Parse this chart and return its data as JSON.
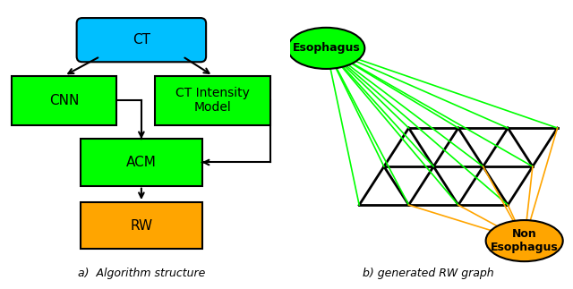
{
  "title_left": "a)  Algorithm structure",
  "title_right": "b) generated RW graph",
  "ct_label": "CT",
  "cnn_label": "CNN",
  "ct_intensity_label": "CT Intensity\nModel",
  "acm_label": "ACM",
  "rw_label": "RW",
  "esophagus_label": "Esophagus",
  "non_esophagus_label": "Non\nEsophagus",
  "cyan_color": "#00BFFF",
  "green_color": "#00FF00",
  "orange_color": "#FFA500",
  "line_color_green": "#00FF00",
  "line_color_orange": "#FFA500",
  "black": "#000000",
  "white": "#FFFFFF",
  "bg_color": "#FFFFFF"
}
